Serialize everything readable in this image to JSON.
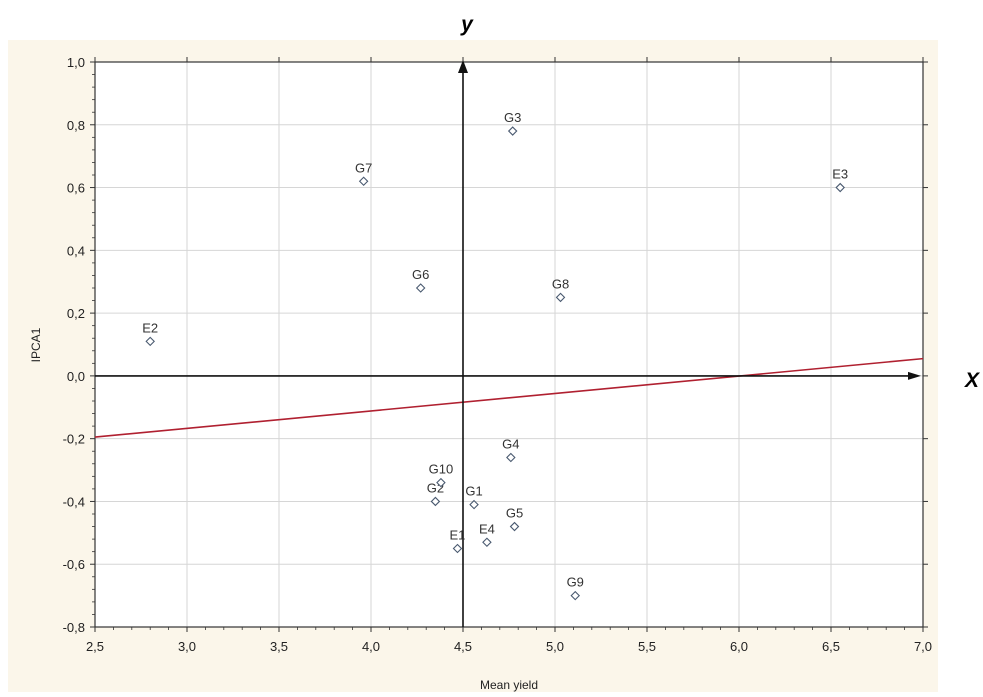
{
  "chart_data": {
    "type": "scatter",
    "xlabel": "Mean yield",
    "ylabel": "IPCA1",
    "xlim": [
      2.5,
      7.0
    ],
    "ylim": [
      -0.8,
      1.0
    ],
    "x_ticks": [
      "2,5",
      "3,0",
      "3,5",
      "4,0",
      "4,5",
      "5,0",
      "5,5",
      "6,0",
      "6,5",
      "7,0"
    ],
    "y_ticks": [
      "-0,8",
      "-0,6",
      "-0,4",
      "-0,2",
      "0,0",
      "0,2",
      "0,4",
      "0,6",
      "0,8",
      "1,0"
    ],
    "points": [
      {
        "label": "E1",
        "x": 4.47,
        "y": -0.55
      },
      {
        "label": "E2",
        "x": 2.8,
        "y": 0.11
      },
      {
        "label": "E3",
        "x": 6.55,
        "y": 0.6
      },
      {
        "label": "E4",
        "x": 4.63,
        "y": -0.53
      },
      {
        "label": "G1",
        "x": 4.56,
        "y": -0.41
      },
      {
        "label": "G2",
        "x": 4.35,
        "y": -0.4
      },
      {
        "label": "G3",
        "x": 4.77,
        "y": 0.78
      },
      {
        "label": "G4",
        "x": 4.76,
        "y": -0.26
      },
      {
        "label": "G5",
        "x": 4.78,
        "y": -0.48
      },
      {
        "label": "G6",
        "x": 4.27,
        "y": 0.28
      },
      {
        "label": "G7",
        "x": 3.96,
        "y": 0.62
      },
      {
        "label": "G8",
        "x": 5.03,
        "y": 0.25
      },
      {
        "label": "G9",
        "x": 5.11,
        "y": -0.7
      },
      {
        "label": "G10",
        "x": 4.38,
        "y": -0.34
      }
    ],
    "reference_line": {
      "x1": 2.5,
      "y1": -0.195,
      "x2": 7.0,
      "y2": 0.055,
      "color": "#b02030"
    },
    "grid": true,
    "axis_markers": {
      "y": "y",
      "x": "X"
    }
  }
}
